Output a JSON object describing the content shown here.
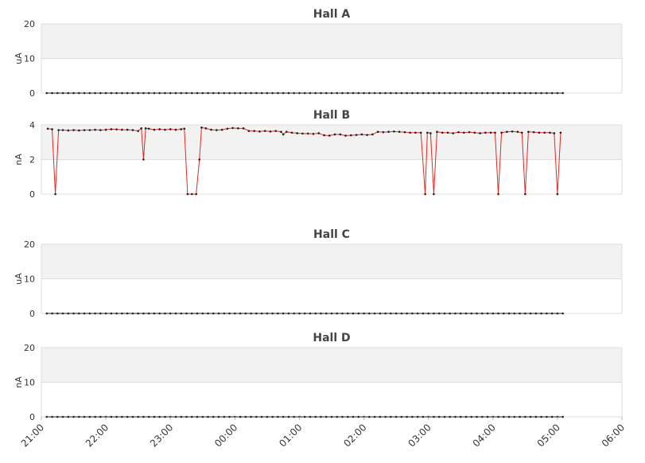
{
  "chart_data": [
    {
      "type": "line",
      "title": "Hall A",
      "ylabel": "uA",
      "color": "#222222",
      "xlim": [
        0,
        540
      ],
      "ylim": [
        0,
        20
      ],
      "yticks": [
        0,
        10,
        20
      ],
      "x": [
        5,
        10,
        15,
        20,
        25,
        30,
        35,
        40,
        45,
        50,
        55,
        60,
        65,
        70,
        75,
        80,
        85,
        90,
        95,
        100,
        105,
        110,
        115,
        120,
        125,
        130,
        135,
        140,
        145,
        150,
        155,
        160,
        165,
        170,
        175,
        180,
        185,
        190,
        195,
        200,
        205,
        210,
        215,
        220,
        225,
        230,
        235,
        240,
        245,
        250,
        255,
        260,
        265,
        270,
        275,
        280,
        285,
        290,
        295,
        300,
        305,
        310,
        315,
        320,
        325,
        330,
        335,
        340,
        345,
        350,
        355,
        360,
        365,
        370,
        375,
        380,
        385,
        390,
        395,
        400,
        405,
        410,
        415,
        420,
        425,
        430,
        435,
        440,
        445,
        450,
        455,
        460,
        465,
        470,
        475,
        480,
        485
      ],
      "values": [
        0,
        0,
        0,
        0,
        0,
        0,
        0,
        0,
        0,
        0,
        0,
        0,
        0,
        0,
        0,
        0,
        0,
        0,
        0,
        0,
        0,
        0,
        0,
        0,
        0,
        0,
        0,
        0,
        0,
        0,
        0,
        0,
        0,
        0,
        0,
        0,
        0,
        0,
        0,
        0,
        0,
        0,
        0,
        0,
        0,
        0,
        0,
        0,
        0,
        0,
        0,
        0,
        0,
        0,
        0,
        0,
        0,
        0,
        0,
        0,
        0,
        0,
        0,
        0,
        0,
        0,
        0,
        0,
        0,
        0,
        0,
        0,
        0,
        0,
        0,
        0,
        0,
        0,
        0,
        0,
        0,
        0,
        0,
        0,
        0,
        0,
        0,
        0,
        0,
        0,
        0,
        0,
        0,
        0,
        0,
        0,
        0
      ]
    },
    {
      "type": "line",
      "title": "Hall B",
      "ylabel": "nA",
      "color": "#e8261e",
      "xlim": [
        0,
        540
      ],
      "ylim": [
        0,
        4
      ],
      "yticks": [
        0,
        2,
        4
      ],
      "x": [
        6,
        10,
        13,
        16,
        20,
        25,
        30,
        35,
        40,
        45,
        50,
        55,
        60,
        65,
        70,
        75,
        80,
        85,
        90,
        93,
        95,
        97,
        100,
        105,
        110,
        115,
        120,
        125,
        130,
        133,
        136,
        140,
        144,
        147,
        149,
        153,
        158,
        163,
        168,
        173,
        178,
        183,
        188,
        193,
        198,
        203,
        208,
        213,
        218,
        223,
        225,
        228,
        233,
        238,
        243,
        248,
        253,
        258,
        263,
        268,
        273,
        278,
        283,
        288,
        293,
        298,
        303,
        308,
        313,
        318,
        323,
        328,
        333,
        338,
        343,
        348,
        353,
        357,
        359,
        362,
        365,
        368,
        373,
        378,
        383,
        388,
        393,
        398,
        403,
        408,
        413,
        418,
        422,
        425,
        428,
        433,
        438,
        443,
        447,
        450,
        453,
        458,
        463,
        468,
        473,
        477,
        480,
        483
      ],
      "values": [
        3.78,
        3.75,
        0,
        3.7,
        3.7,
        3.68,
        3.7,
        3.68,
        3.7,
        3.7,
        3.72,
        3.7,
        3.72,
        3.75,
        3.74,
        3.72,
        3.72,
        3.7,
        3.65,
        3.8,
        2,
        3.8,
        3.78,
        3.72,
        3.75,
        3.72,
        3.75,
        3.72,
        3.75,
        3.78,
        0,
        0,
        0,
        2,
        3.85,
        3.8,
        3.72,
        3.7,
        3.72,
        3.78,
        3.82,
        3.8,
        3.8,
        3.65,
        3.65,
        3.62,
        3.65,
        3.62,
        3.65,
        3.6,
        3.45,
        3.6,
        3.55,
        3.52,
        3.5,
        3.5,
        3.48,
        3.52,
        3.4,
        3.38,
        3.45,
        3.45,
        3.38,
        3.4,
        3.42,
        3.45,
        3.42,
        3.45,
        3.6,
        3.58,
        3.6,
        3.62,
        3.6,
        3.58,
        3.55,
        3.55,
        3.55,
        0,
        3.55,
        3.52,
        0,
        3.6,
        3.55,
        3.55,
        3.52,
        3.58,
        3.55,
        3.58,
        3.55,
        3.52,
        3.55,
        3.55,
        3.55,
        0,
        3.55,
        3.6,
        3.62,
        3.6,
        3.55,
        0,
        3.6,
        3.58,
        3.55,
        3.55,
        3.55,
        3.52,
        0,
        3.55
      ]
    },
    {
      "type": "line",
      "title": "Hall C",
      "ylabel": "uA",
      "color": "#222222",
      "xlim": [
        0,
        540
      ],
      "ylim": [
        0,
        20
      ],
      "yticks": [
        0,
        10,
        20
      ],
      "x": [
        5,
        10,
        15,
        20,
        25,
        30,
        35,
        40,
        45,
        50,
        55,
        60,
        65,
        70,
        75,
        80,
        85,
        90,
        95,
        100,
        105,
        110,
        115,
        120,
        125,
        130,
        135,
        140,
        145,
        150,
        155,
        160,
        165,
        170,
        175,
        180,
        185,
        190,
        195,
        200,
        205,
        210,
        215,
        220,
        225,
        230,
        235,
        240,
        245,
        250,
        255,
        260,
        265,
        270,
        275,
        280,
        285,
        290,
        295,
        300,
        305,
        310,
        315,
        320,
        325,
        330,
        335,
        340,
        345,
        350,
        355,
        360,
        365,
        370,
        375,
        380,
        385,
        390,
        395,
        400,
        405,
        410,
        415,
        420,
        425,
        430,
        435,
        440,
        445,
        450,
        455,
        460,
        465,
        470,
        475,
        480,
        485
      ],
      "values": [
        0,
        0,
        0,
        0,
        0,
        0,
        0,
        0,
        0,
        0,
        0,
        0,
        0,
        0,
        0,
        0,
        0,
        0,
        0,
        0,
        0,
        0,
        0,
        0,
        0,
        0,
        0,
        0,
        0,
        0,
        0,
        0,
        0,
        0,
        0,
        0,
        0,
        0,
        0,
        0,
        0,
        0,
        0,
        0,
        0,
        0,
        0,
        0,
        0,
        0,
        0,
        0,
        0,
        0,
        0,
        0,
        0,
        0,
        0,
        0,
        0,
        0,
        0,
        0,
        0,
        0,
        0,
        0,
        0,
        0,
        0,
        0,
        0,
        0,
        0,
        0,
        0,
        0,
        0,
        0,
        0,
        0,
        0,
        0,
        0,
        0,
        0,
        0,
        0,
        0,
        0,
        0,
        0,
        0,
        0,
        0,
        0
      ]
    },
    {
      "type": "line",
      "title": "Hall D",
      "ylabel": "nA",
      "color": "#222222",
      "xlim": [
        0,
        540
      ],
      "ylim": [
        0,
        20
      ],
      "yticks": [
        0,
        10,
        20
      ],
      "x": [
        5,
        10,
        15,
        20,
        25,
        30,
        35,
        40,
        45,
        50,
        55,
        60,
        65,
        70,
        75,
        80,
        85,
        90,
        95,
        100,
        105,
        110,
        115,
        120,
        125,
        130,
        135,
        140,
        145,
        150,
        155,
        160,
        165,
        170,
        175,
        180,
        185,
        190,
        195,
        200,
        205,
        210,
        215,
        220,
        225,
        230,
        235,
        240,
        245,
        250,
        255,
        260,
        265,
        270,
        275,
        280,
        285,
        290,
        295,
        300,
        305,
        310,
        315,
        320,
        325,
        330,
        335,
        340,
        345,
        350,
        355,
        360,
        365,
        370,
        375,
        380,
        385,
        390,
        395,
        400,
        405,
        410,
        415,
        420,
        425,
        430,
        435,
        440,
        445,
        450,
        455,
        460,
        465,
        470,
        475,
        480,
        485
      ],
      "values": [
        0,
        0,
        0,
        0,
        0,
        0,
        0,
        0,
        0,
        0,
        0,
        0,
        0,
        0,
        0,
        0,
        0,
        0,
        0,
        0,
        0,
        0,
        0,
        0,
        0,
        0,
        0,
        0,
        0,
        0,
        0,
        0,
        0,
        0,
        0,
        0,
        0,
        0,
        0,
        0,
        0,
        0,
        0,
        0,
        0,
        0,
        0,
        0,
        0,
        0,
        0,
        0,
        0,
        0,
        0,
        0,
        0,
        0,
        0,
        0,
        0,
        0,
        0,
        0,
        0,
        0,
        0,
        0,
        0,
        0,
        0,
        0,
        0,
        0,
        0,
        0,
        0,
        0,
        0,
        0,
        0,
        0,
        0,
        0,
        0,
        0,
        0,
        0,
        0,
        0,
        0,
        0,
        0,
        0,
        0,
        0,
        0
      ],
      "xticks": [
        {
          "value": 0,
          "label": "21:00"
        },
        {
          "value": 60,
          "label": "22:00"
        },
        {
          "value": 120,
          "label": "23:00"
        },
        {
          "value": 180,
          "label": "00:00"
        },
        {
          "value": 240,
          "label": "01:00"
        },
        {
          "value": 300,
          "label": "02:00"
        },
        {
          "value": 360,
          "label": "03:00"
        },
        {
          "value": 420,
          "label": "04:00"
        },
        {
          "value": 480,
          "label": "05:00"
        },
        {
          "value": 540,
          "label": "06:00"
        }
      ]
    }
  ]
}
